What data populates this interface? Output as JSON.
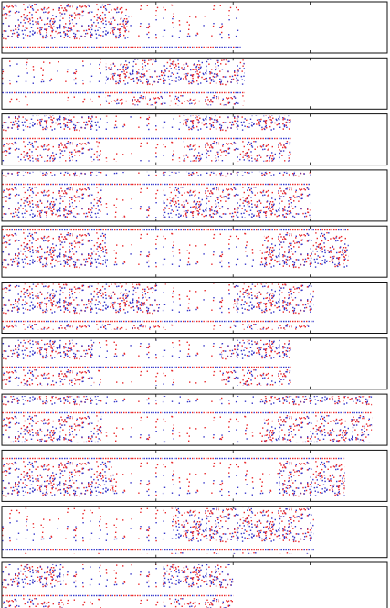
{
  "chart_data": [
    {
      "type": "strip",
      "xlim": [
        0,
        100
      ],
      "xticks": [
        0,
        20,
        40,
        60,
        80,
        100
      ],
      "colors": [
        "#e8262a",
        "#3434c8"
      ],
      "segments": [
        {
          "x": [
            0,
            33
          ],
          "density": "dense"
        },
        {
          "x": [
            33,
            62
          ],
          "density": "sparse"
        }
      ]
    },
    {
      "type": "strip",
      "xlim": [
        0,
        100
      ],
      "xticks": [
        0,
        20,
        40,
        60,
        80,
        100
      ],
      "colors": [
        "#e8262a",
        "#3434c8"
      ],
      "segments": [
        {
          "x": [
            0,
            27
          ],
          "density": "sparse"
        },
        {
          "x": [
            27,
            63
          ],
          "density": "dense"
        }
      ]
    },
    {
      "type": "strip",
      "xlim": [
        0,
        100
      ],
      "xticks": [
        0,
        20,
        40,
        60,
        80,
        100
      ],
      "colors": [
        "#e8262a",
        "#3434c8"
      ],
      "segments": [
        {
          "x": [
            0,
            25
          ],
          "density": "dense"
        },
        {
          "x": [
            25,
            47
          ],
          "density": "sparse"
        },
        {
          "x": [
            47,
            75
          ],
          "density": "dense"
        }
      ]
    },
    {
      "type": "strip",
      "xlim": [
        0,
        100
      ],
      "xticks": [
        0,
        20,
        40,
        60,
        80,
        100
      ],
      "colors": [
        "#e8262a",
        "#3434c8"
      ],
      "segments": [
        {
          "x": [
            0,
            26
          ],
          "density": "dense"
        },
        {
          "x": [
            26,
            42
          ],
          "density": "sparse"
        },
        {
          "x": [
            42,
            80
          ],
          "density": "dense"
        }
      ]
    },
    {
      "type": "strip",
      "xlim": [
        0,
        100
      ],
      "xticks": [
        0,
        20,
        40,
        60,
        80,
        100
      ],
      "colors": [
        "#e8262a",
        "#3434c8"
      ],
      "segments": [
        {
          "x": [
            0,
            27
          ],
          "density": "dense"
        },
        {
          "x": [
            27,
            68
          ],
          "density": "sparse"
        },
        {
          "x": [
            68,
            90
          ],
          "density": "dense"
        }
      ]
    },
    {
      "type": "strip",
      "xlim": [
        0,
        100
      ],
      "xticks": [
        0,
        20,
        40,
        60,
        80,
        100
      ],
      "colors": [
        "#e8262a",
        "#3434c8"
      ],
      "segments": [
        {
          "x": [
            0,
            41
          ],
          "density": "dense"
        },
        {
          "x": [
            41,
            60
          ],
          "density": "sparse"
        },
        {
          "x": [
            60,
            81
          ],
          "density": "dense"
        }
      ]
    },
    {
      "type": "strip",
      "xlim": [
        0,
        100
      ],
      "xticks": [
        0,
        20,
        40,
        60,
        80,
        100
      ],
      "colors": [
        "#e8262a",
        "#3434c8"
      ],
      "segments": [
        {
          "x": [
            0,
            24
          ],
          "density": "dense"
        },
        {
          "x": [
            24,
            57
          ],
          "density": "sparse"
        },
        {
          "x": [
            57,
            75
          ],
          "density": "dense"
        }
      ]
    },
    {
      "type": "strip",
      "xlim": [
        0,
        100
      ],
      "xticks": [
        0,
        20,
        40,
        60,
        80,
        100
      ],
      "colors": [
        "#e8262a",
        "#3434c8"
      ],
      "segments": [
        {
          "x": [
            0,
            26
          ],
          "density": "dense"
        },
        {
          "x": [
            26,
            68
          ],
          "density": "sparse"
        },
        {
          "x": [
            68,
            96
          ],
          "density": "dense"
        }
      ]
    },
    {
      "type": "strip",
      "xlim": [
        0,
        100
      ],
      "xticks": [
        0,
        20,
        40,
        60,
        80,
        100
      ],
      "colors": [
        "#e8262a",
        "#3434c8"
      ],
      "segments": [
        {
          "x": [
            0,
            29
          ],
          "density": "dense"
        },
        {
          "x": [
            29,
            72
          ],
          "density": "sparse"
        },
        {
          "x": [
            72,
            89
          ],
          "density": "dense"
        }
      ]
    },
    {
      "type": "strip",
      "xlim": [
        0,
        100
      ],
      "xticks": [
        0,
        20,
        40,
        60,
        80,
        100
      ],
      "colors": [
        "#e8262a",
        "#3434c8"
      ],
      "segments": [
        {
          "x": [
            0,
            45
          ],
          "density": "sparse"
        },
        {
          "x": [
            45,
            81
          ],
          "density": "dense"
        }
      ]
    },
    {
      "type": "strip",
      "xlim": [
        0,
        100
      ],
      "xticks": [
        0,
        20,
        40,
        60,
        80,
        100
      ],
      "colors": [
        "#e8262a",
        "#3434c8"
      ],
      "segments": [
        {
          "x": [
            0,
            16
          ],
          "density": "dense"
        },
        {
          "x": [
            16,
            42
          ],
          "density": "sparse"
        },
        {
          "x": [
            42,
            60
          ],
          "density": "dense"
        }
      ]
    }
  ]
}
